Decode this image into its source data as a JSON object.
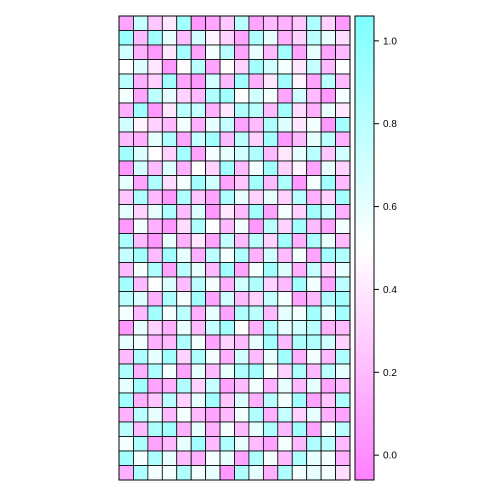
{
  "chart_data": {
    "type": "heatmap",
    "title": "",
    "xlabel": "",
    "ylabel": "",
    "rows": 32,
    "cols": 16,
    "zlim": [
      -0.06,
      1.06
    ],
    "colorscale": {
      "low": "#ff80ff",
      "mid": "#ffffff",
      "high": "#80ffff",
      "mid_value": 0.5
    },
    "colorbar": {
      "ticks": [
        0.0,
        0.2,
        0.4,
        0.6,
        0.8,
        1.0
      ],
      "tick_labels": [
        "0.0",
        "0.2",
        "0.4",
        "0.6",
        "0.8",
        "1.0"
      ]
    },
    "values": [
      [
        0.1,
        0.75,
        0.25,
        0.4,
        0.9,
        0.05,
        0.1,
        0.25,
        0.8,
        0.1,
        0.2,
        0.15,
        0.25,
        0.85,
        0.3,
        0.05
      ],
      [
        0.95,
        0.2,
        0.9,
        0.6,
        0.2,
        0.7,
        0.45,
        0.3,
        0.1,
        0.85,
        0.6,
        0.15,
        0.3,
        0.8,
        0.6,
        0.35
      ],
      [
        0.7,
        0.15,
        0.05,
        0.4,
        0.9,
        0.1,
        0.55,
        0.8,
        0.1,
        0.6,
        0.2,
        0.9,
        0.1,
        0.6,
        0.1,
        0.2
      ],
      [
        0.5,
        0.65,
        0.4,
        0.05,
        0.5,
        0.8,
        0.1,
        0.5,
        0.3,
        0.9,
        0.7,
        0.55,
        0.4,
        0.75,
        0.2,
        0.5
      ],
      [
        0.8,
        0.15,
        0.3,
        0.9,
        0.1,
        0.05,
        0.7,
        0.2,
        0.9,
        0.15,
        0.4,
        0.9,
        0.45,
        0.1,
        0.8,
        0.2
      ],
      [
        0.55,
        0.1,
        0.8,
        0.6,
        0.3,
        0.2,
        0.85,
        0.9,
        0.5,
        0.7,
        0.55,
        0.1,
        0.7,
        0.2,
        0.05,
        0.55
      ],
      [
        0.15,
        0.9,
        0.05,
        0.4,
        0.8,
        0.75,
        0.15,
        0.4,
        0.85,
        0.8,
        0.2,
        0.9,
        0.35,
        0.15,
        0.6,
        0.4
      ],
      [
        0.7,
        0.45,
        0.3,
        0.2,
        0.55,
        0.15,
        0.6,
        0.75,
        0.1,
        0.2,
        0.85,
        0.65,
        0.4,
        0.55,
        0.05,
        0.9
      ],
      [
        0.2,
        0.15,
        0.6,
        0.85,
        0.1,
        0.75,
        0.9,
        0.2,
        0.8,
        0.3,
        0.9,
        0.05,
        0.2,
        0.6,
        0.8,
        0.15
      ],
      [
        0.9,
        0.65,
        0.5,
        0.3,
        0.9,
        0.1,
        0.55,
        0.6,
        0.7,
        0.85,
        0.2,
        0.4,
        0.6,
        0.8,
        0.25,
        0.7
      ],
      [
        0.05,
        0.7,
        0.2,
        0.65,
        0.15,
        0.5,
        0.3,
        0.9,
        0.2,
        0.55,
        0.9,
        0.3,
        0.45,
        0.1,
        0.6,
        0.3
      ],
      [
        0.6,
        0.1,
        0.85,
        0.35,
        0.55,
        0.9,
        0.7,
        0.1,
        0.25,
        0.9,
        0.2,
        0.85,
        0.05,
        0.55,
        0.9,
        0.2
      ],
      [
        0.25,
        0.85,
        0.2,
        0.05,
        0.85,
        0.25,
        0.1,
        0.85,
        0.6,
        0.3,
        0.6,
        0.3,
        0.8,
        0.15,
        0.3,
        0.9
      ],
      [
        0.6,
        0.3,
        0.6,
        0.85,
        0.2,
        0.65,
        0.05,
        0.4,
        0.2,
        0.9,
        0.1,
        0.55,
        0.3,
        0.9,
        0.75,
        0.15
      ],
      [
        0.05,
        0.55,
        0.15,
        0.05,
        0.35,
        0.85,
        0.5,
        0.2,
        0.55,
        0.05,
        0.8,
        0.3,
        0.9,
        0.2,
        0.1,
        0.55
      ],
      [
        0.85,
        0.2,
        0.05,
        0.6,
        0.15,
        0.4,
        0.1,
        0.75,
        0.2,
        0.8,
        0.3,
        0.9,
        0.15,
        0.85,
        0.6,
        0.2
      ],
      [
        0.75,
        0.9,
        0.2,
        0.9,
        0.6,
        0.15,
        0.8,
        0.55,
        0.85,
        0.15,
        0.7,
        0.2,
        0.55,
        0.1,
        0.9,
        0.85
      ],
      [
        0.2,
        0.55,
        0.85,
        0.1,
        0.8,
        0.6,
        0.2,
        0.9,
        0.1,
        0.55,
        0.9,
        0.65,
        0.15,
        0.75,
        0.3,
        0.6
      ],
      [
        0.9,
        0.2,
        0.5,
        0.65,
        0.2,
        0.8,
        0.55,
        0.15,
        0.7,
        0.85,
        0.3,
        0.2,
        0.9,
        0.55,
        0.1,
        0.8
      ],
      [
        0.8,
        0.65,
        0.15,
        0.85,
        0.55,
        0.9,
        0.1,
        0.7,
        0.2,
        0.3,
        0.75,
        0.55,
        0.1,
        0.2,
        0.85,
        0.9
      ],
      [
        0.55,
        0.2,
        0.9,
        0.55,
        0.8,
        0.15,
        0.6,
        0.1,
        0.85,
        0.8,
        0.2,
        0.6,
        0.55,
        0.9,
        0.6,
        0.9
      ],
      [
        0.05,
        0.6,
        0.3,
        0.15,
        0.6,
        0.2,
        0.75,
        0.9,
        0.5,
        0.15,
        0.85,
        0.6,
        0.7,
        0.8,
        0.15,
        0.2
      ],
      [
        0.6,
        0.55,
        0.15,
        0.2,
        0.85,
        0.55,
        0.1,
        0.3,
        0.2,
        0.6,
        0.9,
        0.2,
        0.85,
        0.85,
        0.7,
        0.3
      ],
      [
        0.2,
        0.85,
        0.6,
        0.9,
        0.3,
        0.85,
        0.55,
        0.15,
        0.7,
        0.2,
        0.6,
        0.9,
        0.15,
        0.55,
        0.2,
        0.85
      ],
      [
        0.85,
        0.15,
        0.85,
        0.55,
        0.1,
        0.6,
        0.2,
        0.6,
        0.85,
        0.9,
        0.55,
        0.3,
        0.85,
        0.2,
        0.8,
        0.6
      ],
      [
        0.6,
        0.9,
        0.1,
        0.15,
        0.85,
        0.3,
        0.75,
        0.1,
        0.2,
        0.55,
        0.15,
        0.6,
        0.2,
        0.6,
        0.1,
        0.2
      ],
      [
        0.9,
        0.15,
        0.25,
        0.8,
        0.3,
        0.6,
        0.9,
        0.25,
        0.65,
        0.15,
        0.8,
        0.55,
        0.9,
        0.1,
        0.25,
        0.85
      ],
      [
        0.15,
        0.8,
        0.6,
        0.2,
        0.55,
        0.2,
        0.1,
        0.2,
        0.55,
        0.85,
        0.15,
        0.75,
        0.3,
        0.6,
        0.15,
        0.1
      ],
      [
        0.8,
        0.2,
        0.85,
        0.9,
        0.15,
        0.6,
        0.15,
        0.55,
        0.2,
        0.6,
        0.85,
        0.2,
        0.9,
        0.1,
        0.55,
        0.8
      ],
      [
        0.55,
        0.85,
        0.1,
        0.2,
        0.6,
        0.9,
        0.2,
        0.85,
        0.6,
        0.2,
        0.1,
        0.55,
        0.2,
        0.85,
        0.8,
        0.2
      ],
      [
        0.9,
        0.55,
        0.85,
        0.6,
        0.2,
        0.15,
        0.55,
        0.6,
        0.1,
        0.85,
        0.55,
        0.2,
        0.85,
        0.6,
        0.55,
        0.15
      ],
      [
        0.15,
        0.85,
        0.55,
        0.55,
        0.85,
        0.55,
        0.6,
        0.05,
        0.85,
        0.6,
        0.15,
        0.85,
        0.55,
        0.6,
        0.55,
        0.35
      ]
    ]
  }
}
